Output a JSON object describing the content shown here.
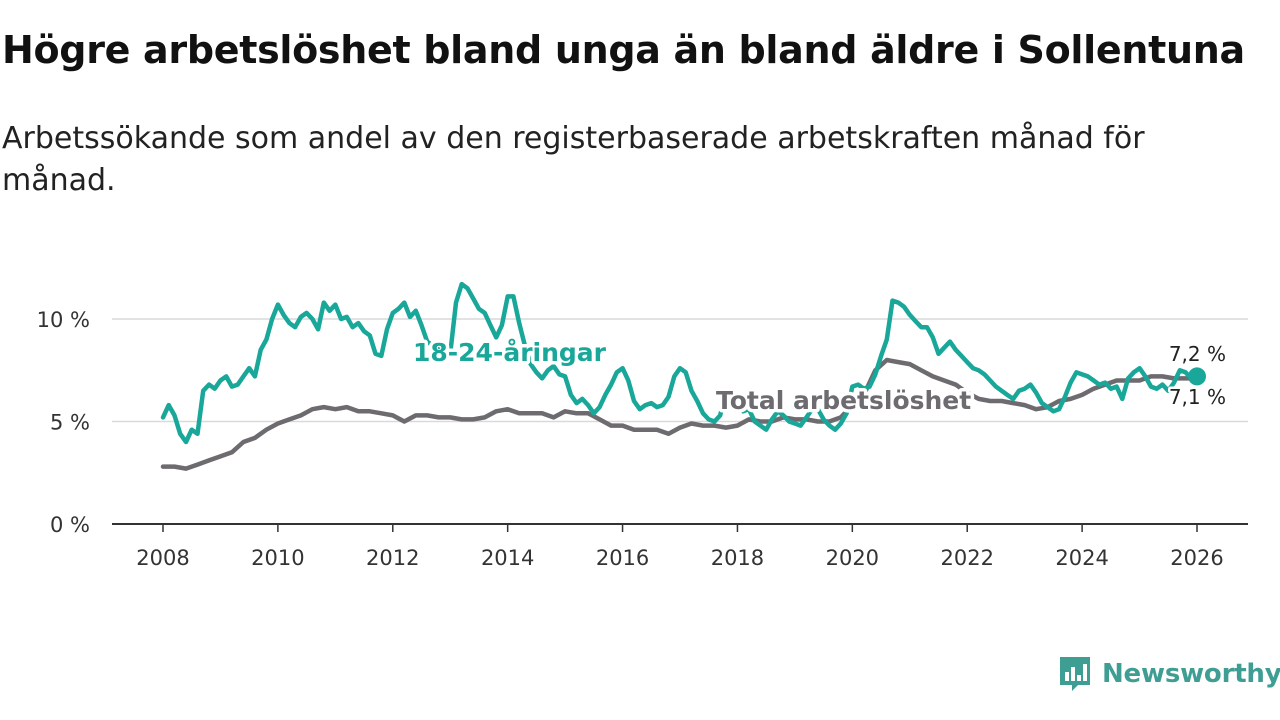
{
  "header": {
    "title": "Högre arbetslöshet bland unga än bland äldre i Sollentuna",
    "subtitle": "Arbetssökande som andel av den registerbaserade arbetskraften månad för månad."
  },
  "brand": {
    "name": "Newsworthy",
    "icon": "bar-chart-icon",
    "color": "#3f9e93"
  },
  "chart_data": {
    "type": "line",
    "title": "Högre arbetslöshet bland unga än bland äldre i Sollentuna",
    "subtitle": "Arbetssökande som andel av den registerbaserade arbetskraften månad för månad.",
    "xlabel": "",
    "ylabel": "",
    "xlim": [
      2007.5,
      2027.0
    ],
    "ylim": [
      0,
      12
    ],
    "x_ticks": [
      2008,
      2010,
      2012,
      2014,
      2016,
      2018,
      2020,
      2022,
      2024,
      2026
    ],
    "x_tick_labels": [
      "2008",
      "2010",
      "2012",
      "2014",
      "2016",
      "2018",
      "2020",
      "2022",
      "2024",
      "2026"
    ],
    "y_ticks": [
      0,
      5,
      10
    ],
    "y_tick_labels": [
      "0 %",
      "5 %",
      "10 %"
    ],
    "grid": true,
    "series": [
      {
        "name": "Total arbetslöshet",
        "label": "Total arbetslöshet",
        "color": "#6d6b70",
        "end_label": "7,1 %",
        "points": [
          [
            2008.0,
            2.8
          ],
          [
            2008.2,
            2.8
          ],
          [
            2008.4,
            2.7
          ],
          [
            2008.6,
            2.9
          ],
          [
            2008.8,
            3.1
          ],
          [
            2009.0,
            3.3
          ],
          [
            2009.2,
            3.5
          ],
          [
            2009.4,
            4.0
          ],
          [
            2009.6,
            4.2
          ],
          [
            2009.8,
            4.6
          ],
          [
            2010.0,
            4.9
          ],
          [
            2010.2,
            5.1
          ],
          [
            2010.4,
            5.3
          ],
          [
            2010.6,
            5.6
          ],
          [
            2010.8,
            5.7
          ],
          [
            2011.0,
            5.6
          ],
          [
            2011.2,
            5.7
          ],
          [
            2011.4,
            5.5
          ],
          [
            2011.6,
            5.5
          ],
          [
            2011.8,
            5.4
          ],
          [
            2012.0,
            5.3
          ],
          [
            2012.2,
            5.0
          ],
          [
            2012.4,
            5.3
          ],
          [
            2012.6,
            5.3
          ],
          [
            2012.8,
            5.2
          ],
          [
            2013.0,
            5.2
          ],
          [
            2013.2,
            5.1
          ],
          [
            2013.4,
            5.1
          ],
          [
            2013.6,
            5.2
          ],
          [
            2013.8,
            5.5
          ],
          [
            2014.0,
            5.6
          ],
          [
            2014.2,
            5.4
          ],
          [
            2014.4,
            5.4
          ],
          [
            2014.6,
            5.4
          ],
          [
            2014.8,
            5.2
          ],
          [
            2015.0,
            5.5
          ],
          [
            2015.2,
            5.4
          ],
          [
            2015.4,
            5.4
          ],
          [
            2015.6,
            5.1
          ],
          [
            2015.8,
            4.8
          ],
          [
            2016.0,
            4.8
          ],
          [
            2016.2,
            4.6
          ],
          [
            2016.4,
            4.6
          ],
          [
            2016.6,
            4.6
          ],
          [
            2016.8,
            4.4
          ],
          [
            2017.0,
            4.7
          ],
          [
            2017.2,
            4.9
          ],
          [
            2017.4,
            4.8
          ],
          [
            2017.6,
            4.8
          ],
          [
            2017.8,
            4.7
          ],
          [
            2018.0,
            4.8
          ],
          [
            2018.2,
            5.1
          ],
          [
            2018.4,
            5.0
          ],
          [
            2018.6,
            5.0
          ],
          [
            2018.8,
            5.2
          ],
          [
            2019.0,
            5.1
          ],
          [
            2019.2,
            5.1
          ],
          [
            2019.4,
            5.0
          ],
          [
            2019.6,
            5.0
          ],
          [
            2019.8,
            5.2
          ],
          [
            2020.0,
            5.8
          ],
          [
            2020.2,
            6.3
          ],
          [
            2020.4,
            7.5
          ],
          [
            2020.6,
            8.0
          ],
          [
            2020.8,
            7.9
          ],
          [
            2021.0,
            7.8
          ],
          [
            2021.2,
            7.5
          ],
          [
            2021.4,
            7.2
          ],
          [
            2021.6,
            7.0
          ],
          [
            2021.8,
            6.8
          ],
          [
            2022.0,
            6.4
          ],
          [
            2022.2,
            6.1
          ],
          [
            2022.4,
            6.0
          ],
          [
            2022.6,
            6.0
          ],
          [
            2022.8,
            5.9
          ],
          [
            2023.0,
            5.8
          ],
          [
            2023.2,
            5.6
          ],
          [
            2023.4,
            5.7
          ],
          [
            2023.6,
            6.0
          ],
          [
            2023.8,
            6.1
          ],
          [
            2024.0,
            6.3
          ],
          [
            2024.2,
            6.6
          ],
          [
            2024.4,
            6.8
          ],
          [
            2024.6,
            7.0
          ],
          [
            2024.8,
            7.0
          ],
          [
            2025.0,
            7.0
          ],
          [
            2025.2,
            7.2
          ],
          [
            2025.4,
            7.2
          ],
          [
            2025.6,
            7.1
          ],
          [
            2025.8,
            7.1
          ],
          [
            2026.0,
            7.1
          ]
        ]
      },
      {
        "name": "18-24-åringar",
        "label": "18-24-åringar",
        "color": "#19a79a",
        "end_label": "7,2 %",
        "points": [
          [
            2008.0,
            5.2
          ],
          [
            2008.1,
            5.8
          ],
          [
            2008.2,
            5.3
          ],
          [
            2008.3,
            4.4
          ],
          [
            2008.4,
            4.0
          ],
          [
            2008.5,
            4.6
          ],
          [
            2008.6,
            4.4
          ],
          [
            2008.7,
            6.5
          ],
          [
            2008.8,
            6.8
          ],
          [
            2008.9,
            6.6
          ],
          [
            2009.0,
            7.0
          ],
          [
            2009.1,
            7.2
          ],
          [
            2009.2,
            6.7
          ],
          [
            2009.3,
            6.8
          ],
          [
            2009.4,
            7.2
          ],
          [
            2009.5,
            7.6
          ],
          [
            2009.6,
            7.2
          ],
          [
            2009.7,
            8.5
          ],
          [
            2009.8,
            9.0
          ],
          [
            2009.9,
            10.0
          ],
          [
            2010.0,
            10.7
          ],
          [
            2010.1,
            10.2
          ],
          [
            2010.2,
            9.8
          ],
          [
            2010.3,
            9.6
          ],
          [
            2010.4,
            10.1
          ],
          [
            2010.5,
            10.3
          ],
          [
            2010.6,
            10.0
          ],
          [
            2010.7,
            9.5
          ],
          [
            2010.8,
            10.8
          ],
          [
            2010.9,
            10.4
          ],
          [
            2011.0,
            10.7
          ],
          [
            2011.1,
            10.0
          ],
          [
            2011.2,
            10.1
          ],
          [
            2011.3,
            9.6
          ],
          [
            2011.4,
            9.8
          ],
          [
            2011.5,
            9.4
          ],
          [
            2011.6,
            9.2
          ],
          [
            2011.7,
            8.3
          ],
          [
            2011.8,
            8.2
          ],
          [
            2011.9,
            9.5
          ],
          [
            2012.0,
            10.3
          ],
          [
            2012.1,
            10.5
          ],
          [
            2012.2,
            10.8
          ],
          [
            2012.3,
            10.1
          ],
          [
            2012.4,
            10.4
          ],
          [
            2012.5,
            9.7
          ],
          [
            2012.6,
            8.9
          ],
          [
            2012.7,
            8.7
          ],
          [
            2012.8,
            8.5
          ],
          [
            2012.9,
            8.5
          ],
          [
            2013.0,
            8.3
          ],
          [
            2013.1,
            10.8
          ],
          [
            2013.2,
            11.7
          ],
          [
            2013.3,
            11.5
          ],
          [
            2013.4,
            11.0
          ],
          [
            2013.5,
            10.5
          ],
          [
            2013.6,
            10.3
          ],
          [
            2013.7,
            9.7
          ],
          [
            2013.8,
            9.1
          ],
          [
            2013.9,
            9.7
          ],
          [
            2014.0,
            11.1
          ],
          [
            2014.1,
            11.1
          ],
          [
            2014.2,
            9.8
          ],
          [
            2014.3,
            8.7
          ],
          [
            2014.4,
            7.8
          ],
          [
            2014.5,
            7.4
          ],
          [
            2014.6,
            7.1
          ],
          [
            2014.7,
            7.5
          ],
          [
            2014.8,
            7.7
          ],
          [
            2014.9,
            7.3
          ],
          [
            2015.0,
            7.2
          ],
          [
            2015.1,
            6.3
          ],
          [
            2015.2,
            5.9
          ],
          [
            2015.3,
            6.1
          ],
          [
            2015.4,
            5.8
          ],
          [
            2015.5,
            5.4
          ],
          [
            2015.6,
            5.7
          ],
          [
            2015.7,
            6.3
          ],
          [
            2015.8,
            6.8
          ],
          [
            2015.9,
            7.4
          ],
          [
            2016.0,
            7.6
          ],
          [
            2016.1,
            7.0
          ],
          [
            2016.2,
            6.0
          ],
          [
            2016.3,
            5.6
          ],
          [
            2016.4,
            5.8
          ],
          [
            2016.5,
            5.9
          ],
          [
            2016.6,
            5.7
          ],
          [
            2016.7,
            5.8
          ],
          [
            2016.8,
            6.2
          ],
          [
            2016.9,
            7.2
          ],
          [
            2017.0,
            7.6
          ],
          [
            2017.1,
            7.4
          ],
          [
            2017.2,
            6.5
          ],
          [
            2017.3,
            6.0
          ],
          [
            2017.4,
            5.4
          ],
          [
            2017.5,
            5.1
          ],
          [
            2017.6,
            5.0
          ],
          [
            2017.7,
            5.3
          ],
          [
            2017.8,
            6.5
          ],
          [
            2017.9,
            6.3
          ],
          [
            2018.0,
            6.1
          ],
          [
            2018.1,
            5.5
          ],
          [
            2018.2,
            5.6
          ],
          [
            2018.3,
            5.0
          ],
          [
            2018.4,
            4.8
          ],
          [
            2018.5,
            4.6
          ],
          [
            2018.6,
            5.1
          ],
          [
            2018.7,
            5.5
          ],
          [
            2018.8,
            5.3
          ],
          [
            2018.9,
            5.0
          ],
          [
            2019.0,
            4.9
          ],
          [
            2019.1,
            4.8
          ],
          [
            2019.2,
            5.2
          ],
          [
            2019.3,
            5.6
          ],
          [
            2019.4,
            5.6
          ],
          [
            2019.5,
            5.1
          ],
          [
            2019.6,
            4.8
          ],
          [
            2019.7,
            4.6
          ],
          [
            2019.8,
            4.9
          ],
          [
            2019.9,
            5.4
          ],
          [
            2020.0,
            6.7
          ],
          [
            2020.1,
            6.8
          ],
          [
            2020.2,
            6.6
          ],
          [
            2020.3,
            6.7
          ],
          [
            2020.4,
            7.3
          ],
          [
            2020.5,
            8.2
          ],
          [
            2020.6,
            9.0
          ],
          [
            2020.7,
            10.9
          ],
          [
            2020.8,
            10.8
          ],
          [
            2020.9,
            10.6
          ],
          [
            2021.0,
            10.2
          ],
          [
            2021.1,
            9.9
          ],
          [
            2021.2,
            9.6
          ],
          [
            2021.3,
            9.6
          ],
          [
            2021.4,
            9.1
          ],
          [
            2021.5,
            8.3
          ],
          [
            2021.6,
            8.6
          ],
          [
            2021.7,
            8.9
          ],
          [
            2021.8,
            8.5
          ],
          [
            2021.9,
            8.2
          ],
          [
            2022.0,
            7.9
          ],
          [
            2022.1,
            7.6
          ],
          [
            2022.2,
            7.5
          ],
          [
            2022.3,
            7.3
          ],
          [
            2022.4,
            7.0
          ],
          [
            2022.5,
            6.7
          ],
          [
            2022.6,
            6.5
          ],
          [
            2022.7,
            6.3
          ],
          [
            2022.8,
            6.1
          ],
          [
            2022.9,
            6.5
          ],
          [
            2023.0,
            6.6
          ],
          [
            2023.1,
            6.8
          ],
          [
            2023.2,
            6.4
          ],
          [
            2023.3,
            5.9
          ],
          [
            2023.4,
            5.7
          ],
          [
            2023.5,
            5.5
          ],
          [
            2023.6,
            5.6
          ],
          [
            2023.7,
            6.2
          ],
          [
            2023.8,
            6.9
          ],
          [
            2023.9,
            7.4
          ],
          [
            2024.0,
            7.3
          ],
          [
            2024.1,
            7.2
          ],
          [
            2024.2,
            7.0
          ],
          [
            2024.3,
            6.8
          ],
          [
            2024.4,
            6.9
          ],
          [
            2024.5,
            6.6
          ],
          [
            2024.6,
            6.7
          ],
          [
            2024.7,
            6.1
          ],
          [
            2024.8,
            7.1
          ],
          [
            2024.9,
            7.4
          ],
          [
            2025.0,
            7.6
          ],
          [
            2025.1,
            7.2
          ],
          [
            2025.2,
            6.7
          ],
          [
            2025.3,
            6.6
          ],
          [
            2025.4,
            6.8
          ],
          [
            2025.5,
            6.5
          ],
          [
            2025.6,
            6.9
          ],
          [
            2025.7,
            7.5
          ],
          [
            2025.8,
            7.4
          ],
          [
            2025.9,
            7.1
          ],
          [
            2026.0,
            7.2
          ]
        ]
      }
    ]
  }
}
